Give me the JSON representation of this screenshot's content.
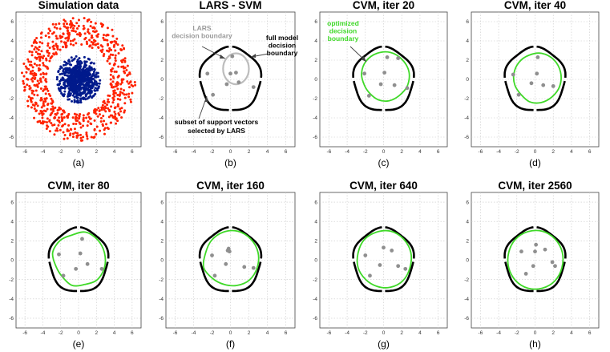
{
  "chart_data": [
    {
      "type": "scatter",
      "title": "Simulation data",
      "subtitle": "(a)",
      "xlim": [
        -7,
        7
      ],
      "ylim": [
        -7,
        7
      ],
      "xticks": [
        -6,
        -4,
        -2,
        0,
        2,
        4,
        6
      ],
      "yticks": [
        -6,
        -4,
        -2,
        0,
        2,
        4,
        6
      ],
      "grid": true,
      "colors": {
        "outer": "#ff2200",
        "inner": "#001a8c"
      },
      "series": [
        {
          "class": "outer ring",
          "radius_range": [
            3.6,
            6.4
          ],
          "count": 700
        },
        {
          "class": "inner blob",
          "radius_sd": 1.0,
          "count": 700
        }
      ]
    },
    {
      "type": "scatter",
      "title": "LARS - SVM",
      "subtitle": "(b)",
      "xlim": [
        -7,
        7
      ],
      "ylim": [
        -7,
        7
      ],
      "xticks": [
        -6,
        -4,
        -2,
        0,
        2,
        4,
        6
      ],
      "yticks": [
        -6,
        -4,
        -2,
        0,
        2,
        4,
        6
      ],
      "grid": true,
      "support_vectors": [
        [
          -2.5,
          0.6
        ],
        [
          0.2,
          2.4
        ],
        [
          -1.9,
          -1.6
        ],
        [
          -0.4,
          -0.5
        ],
        [
          0.6,
          0.7
        ],
        [
          0.0,
          0.6
        ],
        [
          0.9,
          -0.3
        ],
        [
          2.5,
          -0.8
        ]
      ],
      "full_boundary_radius": 3.3,
      "lars_boundary": {
        "cx": 0.6,
        "cy": 1.1,
        "r": 1.4
      },
      "annotations": {
        "lars": [
          "LARS",
          "decision boundary"
        ],
        "full": [
          "full model",
          "decision",
          "boundary"
        ],
        "subset": [
          "subset of support vectors",
          "selected by LARS"
        ]
      }
    },
    {
      "type": "scatter",
      "title": "CVM, iter 20",
      "subtitle": "(c)",
      "xlim": [
        -7,
        7
      ],
      "ylim": [
        -7,
        7
      ],
      "xticks": [
        -6,
        -4,
        -2,
        0,
        2,
        4,
        6
      ],
      "yticks": [
        -6,
        -4,
        -2,
        0,
        2,
        4,
        6
      ],
      "grid": true,
      "support_vectors": [
        [
          -2.1,
          0.6
        ],
        [
          1.6,
          2.2
        ],
        [
          0.4,
          2.3
        ],
        [
          -1.6,
          -1.7
        ],
        [
          -0.3,
          -0.5
        ],
        [
          0.1,
          0.7
        ],
        [
          1.2,
          -0.6
        ],
        [
          2.6,
          -0.9
        ]
      ],
      "full_boundary_radius": 3.3,
      "optimized_boundary_radii": [
        2.9,
        2.9,
        2.8,
        2.7,
        2.5,
        2.2,
        2.1,
        2.2,
        2.3,
        2.4,
        2.7,
        2.9
      ],
      "annotation": [
        "optimized",
        "decision",
        "boundary"
      ]
    },
    {
      "type": "scatter",
      "title": "CVM, iter 40",
      "subtitle": "(d)",
      "xlim": [
        -7,
        7
      ],
      "ylim": [
        -7,
        7
      ],
      "xticks": [
        -6,
        -4,
        -2,
        0,
        2,
        4,
        6
      ],
      "yticks": [
        -6,
        -4,
        -2,
        0,
        2,
        4,
        6
      ],
      "grid": true,
      "support_vectors": [
        [
          -2.4,
          0.5
        ],
        [
          0.3,
          2.3
        ],
        [
          -1.8,
          -1.6
        ],
        [
          -0.4,
          -0.4
        ],
        [
          0.2,
          0.6
        ],
        [
          0.9,
          -0.6
        ],
        [
          2.0,
          -0.7
        ]
      ],
      "full_boundary_radius": 3.3,
      "optimized_boundary_radii": [
        2.9,
        2.8,
        2.6,
        2.5,
        2.4,
        2.3,
        2.2,
        2.4,
        2.5,
        2.6,
        2.8,
        2.9
      ]
    },
    {
      "type": "scatter",
      "title": "CVM, iter 80",
      "subtitle": "(e)",
      "xlim": [
        -7,
        7
      ],
      "ylim": [
        -7,
        7
      ],
      "xticks": [
        -6,
        -4,
        -2,
        0,
        2,
        4,
        6
      ],
      "yticks": [
        -6,
        -4,
        -2,
        0,
        2,
        4,
        6
      ],
      "grid": true,
      "support_vectors": [
        [
          -2.2,
          0.6
        ],
        [
          0.4,
          2.2
        ],
        [
          -1.7,
          -1.6
        ],
        [
          -0.3,
          -0.9
        ],
        [
          0.2,
          0.7
        ],
        [
          1.0,
          -0.4
        ],
        [
          2.6,
          -0.9
        ]
      ],
      "full_boundary_radius": 3.3,
      "optimized_boundary_radii": [
        3.0,
        3.0,
        2.7,
        2.9,
        3.0,
        2.6,
        2.5,
        2.7,
        2.6,
        2.9,
        3.0,
        3.0
      ]
    },
    {
      "type": "scatter",
      "title": "CVM, iter 160",
      "subtitle": "(f)",
      "xlim": [
        -7,
        7
      ],
      "ylim": [
        -7,
        7
      ],
      "xticks": [
        -6,
        -4,
        -2,
        0,
        2,
        4,
        6
      ],
      "yticks": [
        -6,
        -4,
        -2,
        0,
        2,
        4,
        6
      ],
      "grid": true,
      "support_vectors": [
        [
          -2.0,
          0.5
        ],
        [
          -0.3,
          1.0
        ],
        [
          -0.2,
          1.2
        ],
        [
          -1.7,
          -1.6
        ],
        [
          -0.5,
          -0.4
        ],
        [
          1.5,
          -0.7
        ],
        [
          2.5,
          -0.8
        ],
        [
          -0.1,
          0.9
        ]
      ],
      "full_boundary_radius": 3.3,
      "optimized_boundary_radii": [
        3.1,
        3.1,
        3.0,
        2.9,
        2.8,
        3.0,
        2.7,
        2.6,
        2.7,
        2.9,
        3.0,
        3.1
      ]
    },
    {
      "type": "scatter",
      "title": "CVM, iter 640",
      "subtitle": "(g)",
      "xlim": [
        -7,
        7
      ],
      "ylim": [
        -7,
        7
      ],
      "xticks": [
        -6,
        -4,
        -2,
        0,
        2,
        4,
        6
      ],
      "yticks": [
        -6,
        -4,
        -2,
        0,
        2,
        4,
        6
      ],
      "grid": true,
      "support_vectors": [
        [
          -2.0,
          0.5
        ],
        [
          0.0,
          1.3
        ],
        [
          -1.5,
          -1.6
        ],
        [
          -0.4,
          -0.5
        ],
        [
          0.9,
          1.0
        ],
        [
          1.6,
          -0.6
        ],
        [
          2.4,
          -0.9
        ]
      ],
      "full_boundary_radius": 3.3,
      "optimized_boundary_radii": [
        3.1,
        3.1,
        3.0,
        3.0,
        2.9,
        2.9,
        2.8,
        2.8,
        2.9,
        3.0,
        3.0,
        3.1
      ]
    },
    {
      "type": "scatter",
      "title": "CVM, iter 2560",
      "subtitle": "(h)",
      "xlim": [
        -7,
        7
      ],
      "ylim": [
        -7,
        7
      ],
      "xticks": [
        -6,
        -4,
        -2,
        0,
        2,
        4,
        6
      ],
      "yticks": [
        -6,
        -4,
        -2,
        0,
        2,
        4,
        6
      ],
      "grid": true,
      "support_vectors": [
        [
          -1.5,
          0.9
        ],
        [
          0.1,
          1.6
        ],
        [
          -1.0,
          -1.4
        ],
        [
          0.0,
          0.9
        ],
        [
          1.1,
          1.1
        ],
        [
          1.9,
          -0.2
        ],
        [
          2.2,
          -0.6
        ],
        [
          -0.2,
          -0.6
        ]
      ],
      "full_boundary_radius": 3.3,
      "optimized_boundary_radii": [
        3.1,
        3.1,
        3.05,
        3.05,
        3.0,
        3.0,
        3.0,
        3.0,
        3.0,
        3.05,
        3.05,
        3.1
      ]
    }
  ]
}
